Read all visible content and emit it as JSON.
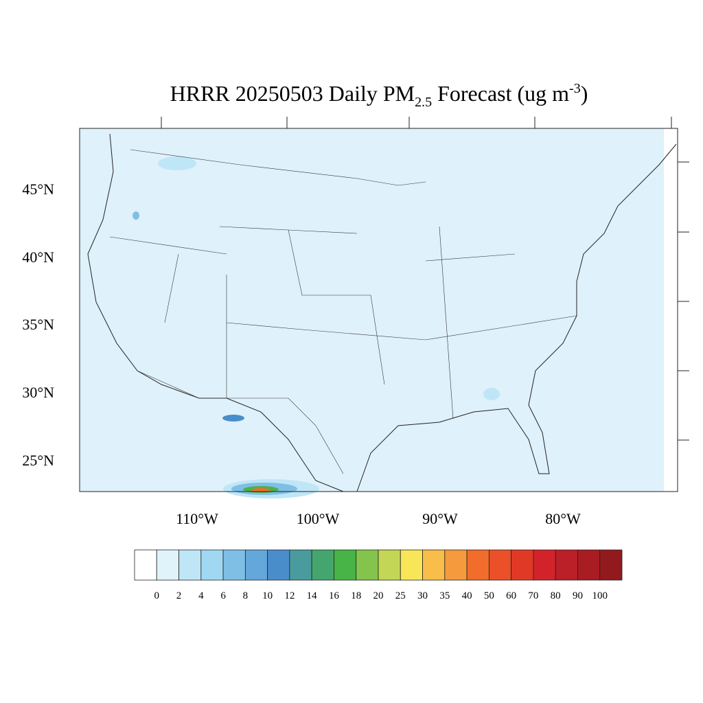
{
  "title": {
    "parts": [
      "HRRR 20250503 Daily PM",
      "2.5",
      " Forecast (ug m",
      "-3",
      ")"
    ]
  },
  "lat_labels": [
    "45°N",
    "40°N",
    "35°N",
    "30°N",
    "25°N"
  ],
  "lon_labels": [
    "110°W",
    "100°W",
    "90°W",
    "80°W"
  ],
  "colorbar": {
    "levels": [
      0,
      2,
      4,
      6,
      8,
      10,
      12,
      14,
      16,
      18,
      20,
      25,
      30,
      35,
      40,
      50,
      60,
      70,
      80,
      90,
      100
    ],
    "colors": [
      "#ffffff",
      "#e0f3fb",
      "#bfe6f6",
      "#a0d8f3",
      "#7fbfe6",
      "#64a7da",
      "#4a8dcb",
      "#4a9b9e",
      "#44a66e",
      "#48b447",
      "#84c44c",
      "#c4d655",
      "#f8e658",
      "#f9bd4a",
      "#f59a3d",
      "#f26c2b",
      "#eb5028",
      "#e03a26",
      "#d2232a",
      "#bb1f27",
      "#a81c22",
      "#921a1d"
    ]
  }
}
